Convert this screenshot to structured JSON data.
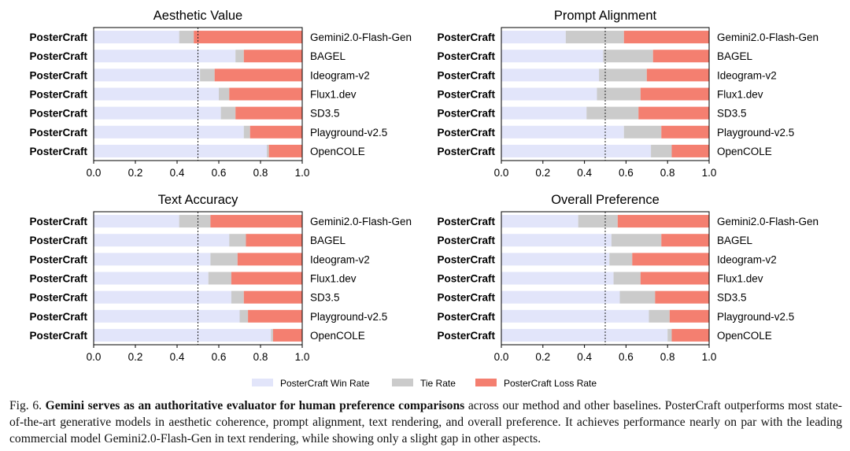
{
  "chart_data": [
    {
      "type": "bar",
      "orientation": "horizontal-stacked",
      "title": "Aesthetic Value",
      "left_labels": [
        "PosterCraft",
        "PosterCraft",
        "PosterCraft",
        "PosterCraft",
        "PosterCraft",
        "PosterCraft",
        "PosterCraft"
      ],
      "categories": [
        "Gemini2.0-Flash-Gen",
        "BAGEL",
        "Ideogram-v2",
        "Flux1.dev",
        "SD3.5",
        "Playground-v2.5",
        "OpenCOLE"
      ],
      "series": [
        {
          "name": "PosterCraft Win Rate",
          "values": [
            0.41,
            0.68,
            0.51,
            0.6,
            0.61,
            0.72,
            0.83
          ]
        },
        {
          "name": "Tie Rate",
          "values": [
            0.07,
            0.04,
            0.07,
            0.05,
            0.07,
            0.03,
            0.01
          ]
        },
        {
          "name": "PosterCraft Loss Rate",
          "values": [
            0.52,
            0.28,
            0.42,
            0.35,
            0.32,
            0.25,
            0.16
          ]
        }
      ],
      "xlim": [
        0,
        1.0
      ],
      "xticks": [
        "0.0",
        "0.2",
        "0.4",
        "0.6",
        "0.8",
        "1.0"
      ],
      "reference_line": 0.5
    },
    {
      "type": "bar",
      "orientation": "horizontal-stacked",
      "title": "Prompt Alignment",
      "left_labels": [
        "PosterCraft",
        "PosterCraft",
        "PosterCraft",
        "PosterCraft",
        "PosterCraft",
        "PosterCraft",
        "PosterCraft"
      ],
      "categories": [
        "Gemini2.0-Flash-Gen",
        "BAGEL",
        "Ideogram-v2",
        "Flux1.dev",
        "SD3.5",
        "Playground-v2.5",
        "OpenCOLE"
      ],
      "series": [
        {
          "name": "PosterCraft Win Rate",
          "values": [
            0.31,
            0.49,
            0.47,
            0.46,
            0.41,
            0.59,
            0.72
          ]
        },
        {
          "name": "Tie Rate",
          "values": [
            0.28,
            0.24,
            0.23,
            0.21,
            0.25,
            0.18,
            0.1
          ]
        },
        {
          "name": "PosterCraft Loss Rate",
          "values": [
            0.41,
            0.27,
            0.3,
            0.33,
            0.34,
            0.23,
            0.18
          ]
        }
      ],
      "xlim": [
        0,
        1.0
      ],
      "xticks": [
        "0.0",
        "0.2",
        "0.4",
        "0.6",
        "0.8",
        "1.0"
      ],
      "reference_line": 0.5
    },
    {
      "type": "bar",
      "orientation": "horizontal-stacked",
      "title": "Text Accuracy",
      "left_labels": [
        "PosterCraft",
        "PosterCraft",
        "PosterCraft",
        "PosterCraft",
        "PosterCraft",
        "PosterCraft",
        "PosterCraft"
      ],
      "categories": [
        "Gemini2.0-Flash-Gen",
        "BAGEL",
        "Ideogram-v2",
        "Flux1.dev",
        "SD3.5",
        "Playground-v2.5",
        "OpenCOLE"
      ],
      "series": [
        {
          "name": "PosterCraft Win Rate",
          "values": [
            0.41,
            0.65,
            0.56,
            0.55,
            0.66,
            0.7,
            0.85
          ]
        },
        {
          "name": "Tie Rate",
          "values": [
            0.15,
            0.08,
            0.13,
            0.11,
            0.06,
            0.04,
            0.01
          ]
        },
        {
          "name": "PosterCraft Loss Rate",
          "values": [
            0.44,
            0.27,
            0.31,
            0.34,
            0.28,
            0.26,
            0.14
          ]
        }
      ],
      "xlim": [
        0,
        1.0
      ],
      "xticks": [
        "0.0",
        "0.2",
        "0.4",
        "0.6",
        "0.8",
        "1.0"
      ],
      "reference_line": 0.5
    },
    {
      "type": "bar",
      "orientation": "horizontal-stacked",
      "title": "Overall Preference",
      "left_labels": [
        "PosterCraft",
        "PosterCraft",
        "PosterCraft",
        "PosterCraft",
        "PosterCraft",
        "PosterCraft",
        "PosterCraft"
      ],
      "categories": [
        "Gemini2.0-Flash-Gen",
        "BAGEL",
        "Ideogram-v2",
        "Flux1.dev",
        "SD3.5",
        "Playground-v2.5",
        "OpenCOLE"
      ],
      "series": [
        {
          "name": "PosterCraft Win Rate",
          "values": [
            0.37,
            0.53,
            0.52,
            0.54,
            0.57,
            0.71,
            0.8
          ]
        },
        {
          "name": "Tie Rate",
          "values": [
            0.19,
            0.24,
            0.11,
            0.13,
            0.17,
            0.1,
            0.02
          ]
        },
        {
          "name": "PosterCraft Loss Rate",
          "values": [
            0.44,
            0.23,
            0.37,
            0.33,
            0.26,
            0.19,
            0.18
          ]
        }
      ],
      "xlim": [
        0,
        1.0
      ],
      "xticks": [
        "0.0",
        "0.2",
        "0.4",
        "0.6",
        "0.8",
        "1.0"
      ],
      "reference_line": 0.5
    }
  ],
  "legend": [
    {
      "label": "PosterCraft Win Rate",
      "color": "#e2e5fa"
    },
    {
      "label": "Tie Rate",
      "color": "#cbcbcb"
    },
    {
      "label": "PosterCraft Loss Rate",
      "color": "#f47f70"
    }
  ],
  "caption": {
    "prefix": "Fig. 6.",
    "bold": "Gemini serves as an authoritative evaluator for human preference comparisons",
    "rest": "across our method and other baselines. PosterCraft outperforms most state-of-the-art generative models in aesthetic coherence, prompt alignment, text rendering, and overall preference. It achieves performance nearly on par with the leading commercial model Gemini2.0-Flash-Gen in text rendering, while showing only a slight gap in other aspects."
  }
}
